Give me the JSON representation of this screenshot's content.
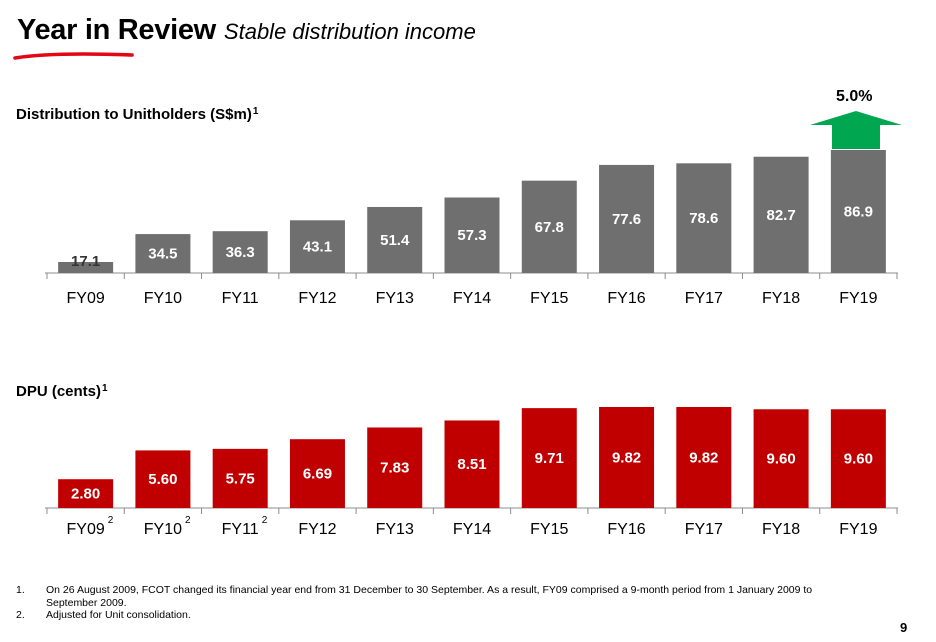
{
  "header": {
    "title": "Year in Review",
    "subtitle": "Stable distribution income"
  },
  "colors": {
    "accent": "#e30613",
    "bar_gray": "#6f6f6f",
    "bar_red": "#c00000",
    "arrow_green": "#00a650",
    "axis": "#8c8c8c"
  },
  "chart_data": [
    {
      "type": "bar",
      "title": "Distribution to Unitholders (S$m)",
      "title_note": "1",
      "categories": [
        "FY09",
        "FY10",
        "FY11",
        "FY12",
        "FY13",
        "FY14",
        "FY15",
        "FY16",
        "FY17",
        "FY18",
        "FY19"
      ],
      "values": [
        17.1,
        34.5,
        36.3,
        43.1,
        51.4,
        57.3,
        67.8,
        77.6,
        78.6,
        82.7,
        86.9
      ],
      "value_labels": [
        "17.1",
        "34.5",
        "36.3",
        "43.1",
        "51.4",
        "57.3",
        "67.8",
        "77.6",
        "78.6",
        "82.7",
        "86.9"
      ],
      "annotation": {
        "text": "5.0%",
        "icon": "up-arrow-icon"
      },
      "grid": false,
      "legend": "none"
    },
    {
      "type": "bar",
      "title": "DPU (cents)",
      "title_note": "1",
      "categories": [
        "FY09",
        "FY10",
        "FY11",
        "FY12",
        "FY13",
        "FY14",
        "FY15",
        "FY16",
        "FY17",
        "FY18",
        "FY19"
      ],
      "category_notes": [
        "2",
        "2",
        "2",
        "",
        "",
        "",
        "",
        "",
        "",
        "",
        ""
      ],
      "values": [
        2.8,
        5.6,
        5.75,
        6.69,
        7.83,
        8.51,
        9.71,
        9.82,
        9.82,
        9.6,
        9.6
      ],
      "value_labels": [
        "2.80",
        "5.60",
        "5.75",
        "6.69",
        "7.83",
        "8.51",
        "9.71",
        "9.82",
        "9.82",
        "9.60",
        "9.60"
      ],
      "grid": false,
      "legend": "none"
    }
  ],
  "footnotes": [
    {
      "marker": "1.",
      "text": "On 26 August 2009, FCOT changed its financial year end from 31 December to 30 September. As a result, FY09 comprised a 9-month period from 1 January 2009 to September 2009."
    },
    {
      "marker": "2.",
      "text": "Adjusted for Unit consolidation."
    }
  ],
  "page_number": "9"
}
